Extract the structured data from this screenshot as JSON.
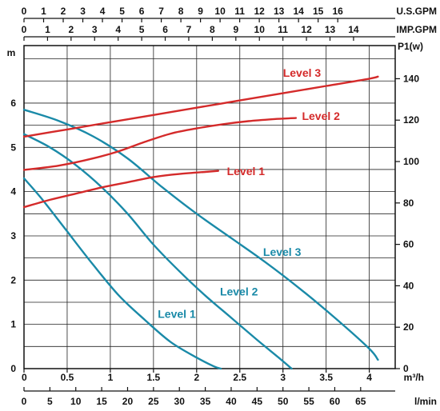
{
  "chart_data": {
    "type": "line",
    "x_axis_primary": {
      "label": "m³/h",
      "ticks": [
        "0",
        "0.5",
        "1",
        "1.5",
        "2",
        "2.5",
        "3",
        "3.5",
        "4"
      ],
      "range": [
        0,
        4.3
      ]
    },
    "x_axis_lmin": {
      "label": "l/min",
      "ticks": [
        "0",
        "5",
        "10",
        "15",
        "20",
        "25",
        "30",
        "35",
        "40",
        "45",
        "50",
        "55",
        "60",
        "65"
      ],
      "range": [
        0,
        71.67
      ]
    },
    "x_axis_usgpm": {
      "label": "U.S.GPM",
      "ticks": [
        "0",
        "1",
        "2",
        "3",
        "4",
        "5",
        "6",
        "7",
        "8",
        "9",
        "10",
        "11",
        "12",
        "13",
        "14",
        "15",
        "16"
      ],
      "range": [
        0,
        18.93
      ]
    },
    "x_axis_impgpm": {
      "label": "IMP.GPM",
      "ticks": [
        "0",
        "1",
        "2",
        "3",
        "4",
        "5",
        "6",
        "7",
        "8",
        "9",
        "10",
        "11",
        "12",
        "13",
        "14"
      ],
      "range": [
        0,
        15.77
      ]
    },
    "y_axis_left": {
      "label": "m",
      "ticks": [
        "0",
        "1",
        "2",
        "3",
        "4",
        "5",
        "6"
      ],
      "range": [
        0,
        7.3
      ]
    },
    "y_axis_right": {
      "label": "P1(w)",
      "ticks": [
        "0",
        "20",
        "40",
        "60",
        "80",
        "100",
        "120",
        "140"
      ],
      "range": [
        0,
        156
      ]
    },
    "grid": true,
    "head_series": [
      {
        "name": "Level 1",
        "color": "#1a8aa8",
        "x": [
          0,
          0.2,
          0.5,
          0.8,
          1.1,
          1.4,
          1.7,
          2.0,
          2.2,
          2.28
        ],
        "y": [
          4.3,
          3.85,
          3.1,
          2.35,
          1.65,
          1.1,
          0.6,
          0.25,
          0.05,
          0
        ]
      },
      {
        "name": "Level 2",
        "color": "#1a8aa8",
        "x": [
          0,
          0.3,
          0.6,
          0.9,
          1.2,
          1.5,
          1.8,
          2.1,
          2.4,
          2.7,
          2.95,
          3.1
        ],
        "y": [
          5.3,
          5.0,
          4.6,
          4.1,
          3.5,
          2.8,
          2.2,
          1.65,
          1.15,
          0.65,
          0.25,
          0
        ]
      },
      {
        "name": "Level 3",
        "color": "#1a8aa8",
        "x": [
          0,
          0.4,
          0.8,
          1.2,
          1.6,
          2.0,
          2.4,
          2.8,
          3.2,
          3.6,
          4.0,
          4.1
        ],
        "y": [
          5.85,
          5.6,
          5.25,
          4.75,
          4.1,
          3.5,
          2.95,
          2.4,
          1.8,
          1.15,
          0.45,
          0.2
        ]
      }
    ],
    "power_series": [
      {
        "name": "Level 1",
        "color": "#d42a2a",
        "x": [
          0,
          0.3,
          0.6,
          0.9,
          1.2,
          1.5,
          1.8,
          2.1,
          2.25
        ],
        "y": [
          78,
          81.5,
          84.5,
          87.5,
          90,
          92.5,
          94,
          95,
          95.5
        ]
      },
      {
        "name": "Level 2",
        "color": "#d42a2a",
        "x": [
          0,
          0.4,
          0.8,
          1.1,
          1.4,
          1.7,
          2.0,
          2.3,
          2.6,
          2.9,
          3.15
        ],
        "y": [
          96,
          98,
          101.5,
          105,
          109.5,
          113.5,
          116,
          118,
          119.5,
          120.5,
          121
        ]
      },
      {
        "name": "Level 3",
        "color": "#d42a2a",
        "x": [
          0,
          0.5,
          1.0,
          1.5,
          2.0,
          2.5,
          3.0,
          3.5,
          4.0,
          4.1
        ],
        "y": [
          112,
          115.5,
          119,
          122.5,
          126,
          129.5,
          133,
          136.5,
          140,
          141
        ]
      }
    ],
    "labels": [
      {
        "text": "Level 3",
        "series": "power",
        "x": 3.0,
        "y": 141,
        "color": "#d42a2a"
      },
      {
        "text": "Level 2",
        "series": "power",
        "x": 3.22,
        "y": 120,
        "color": "#d42a2a"
      },
      {
        "text": "Level 1",
        "series": "power",
        "x": 2.35,
        "y": 93.5,
        "color": "#d42a2a"
      },
      {
        "text": "Level 3",
        "series": "head",
        "x": 2.77,
        "y": 2.55,
        "color": "#1a8aa8"
      },
      {
        "text": "Level 2",
        "series": "head",
        "x": 2.27,
        "y": 1.65,
        "color": "#1a8aa8"
      },
      {
        "text": "Level 1",
        "series": "head",
        "x": 1.55,
        "y": 1.15,
        "color": "#1a8aa8"
      }
    ]
  }
}
